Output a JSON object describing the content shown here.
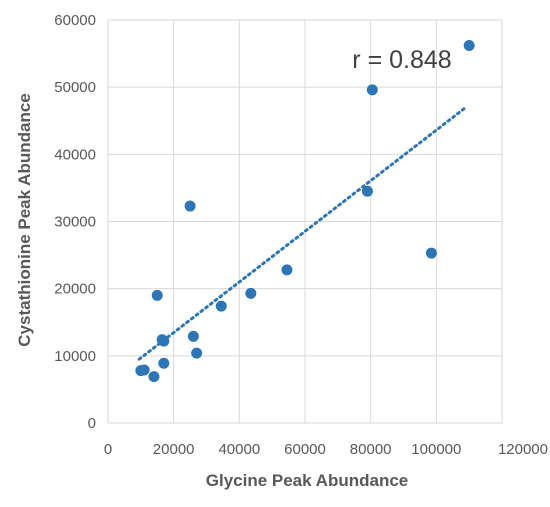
{
  "chart_data": {
    "type": "scatter",
    "title": "",
    "xlabel": "Glycine Peak Abundance",
    "ylabel": "Cystathionine Peak Abundance",
    "xlim": [
      0,
      120000
    ],
    "ylim": [
      0,
      60000
    ],
    "x_ticks": [
      "0",
      "20000",
      "40000",
      "60000",
      "80000",
      "100000",
      "120000"
    ],
    "y_ticks": [
      "0",
      "10000",
      "20000",
      "30000",
      "40000",
      "50000",
      "60000"
    ],
    "grid": true,
    "legend": "none",
    "point_color": "#2E75B6",
    "trendline": {
      "style": "dotted",
      "color": "#2E75B6",
      "x_start": 9500,
      "y_start": 9500,
      "x_end": 109000,
      "y_end": 47000
    },
    "annotation": "r = 0.848",
    "points": [
      {
        "x": 10000,
        "y": 7800
      },
      {
        "x": 11000,
        "y": 7900
      },
      {
        "x": 14000,
        "y": 6900
      },
      {
        "x": 15000,
        "y": 19000
      },
      {
        "x": 16500,
        "y": 12400
      },
      {
        "x": 17000,
        "y": 12200
      },
      {
        "x": 17000,
        "y": 8900
      },
      {
        "x": 25000,
        "y": 32300
      },
      {
        "x": 26000,
        "y": 12900
      },
      {
        "x": 27000,
        "y": 10400
      },
      {
        "x": 34500,
        "y": 17400
      },
      {
        "x": 43500,
        "y": 19300
      },
      {
        "x": 54500,
        "y": 22800
      },
      {
        "x": 79000,
        "y": 34500
      },
      {
        "x": 80500,
        "y": 49600
      },
      {
        "x": 98500,
        "y": 25300
      },
      {
        "x": 110000,
        "y": 56200
      }
    ]
  }
}
